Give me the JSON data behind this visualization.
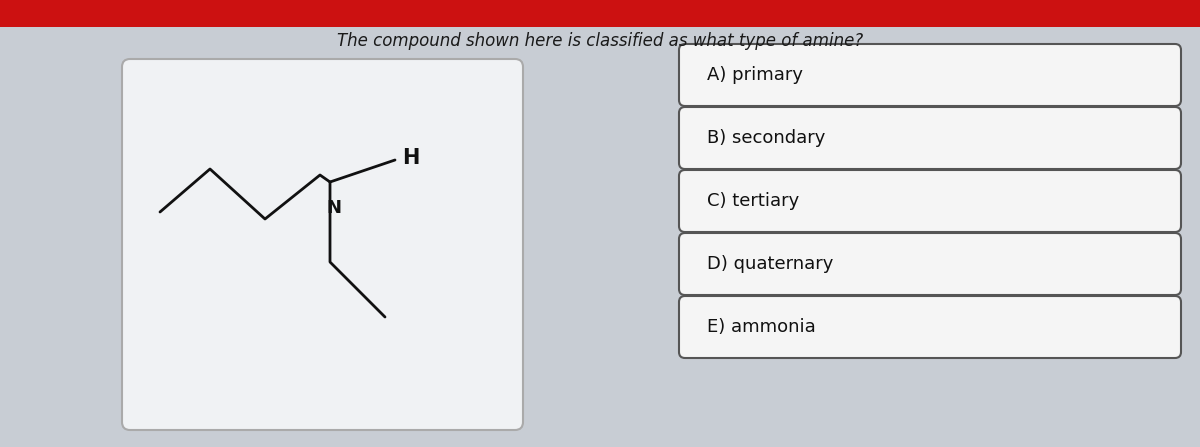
{
  "title": "The compound shown here is classified as what type of amine?",
  "title_fontsize": 12,
  "title_style": "italic",
  "background_color": "#c8cdd4",
  "card_bg": "#f0f0f0",
  "header_red": "#cc1111",
  "question_text_color": "#1a1a1a",
  "choices": [
    "A) primary",
    "B) secondary",
    "C) tertiary",
    "D) quaternary",
    "E) ammonia"
  ],
  "choice_box_color": "#f5f5f5",
  "choice_box_edge": "#555555",
  "choice_text_color": "#111111",
  "choice_fontsize": 13,
  "struct_box_color": "#f0f2f4",
  "molecule_color": "#111111",
  "molecule_label_N": "N",
  "molecule_label_H": "H"
}
